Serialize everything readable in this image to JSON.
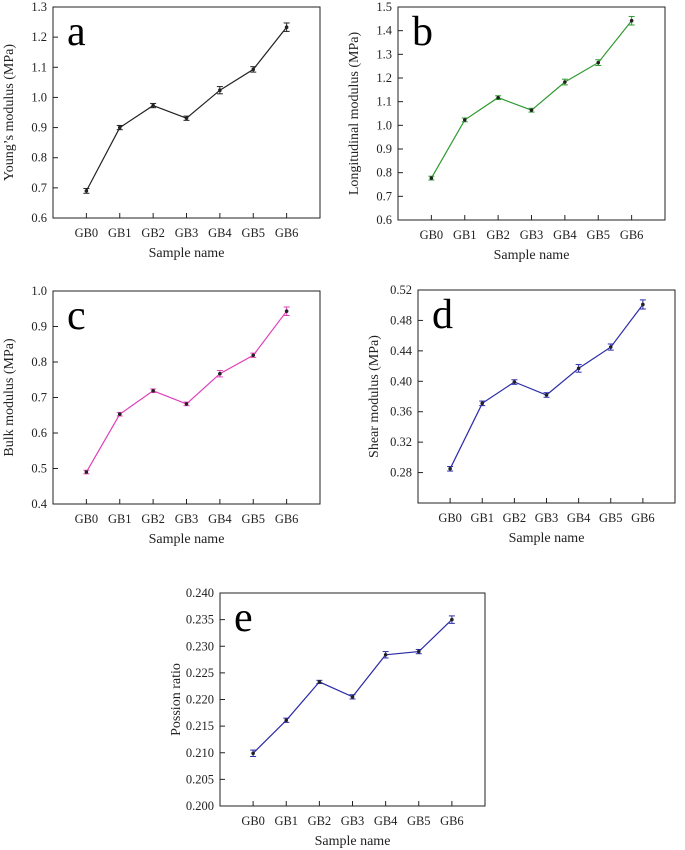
{
  "chart_data": [
    {
      "type": "line",
      "panel": "a",
      "color": "#222222",
      "categories": [
        "GB0",
        "GB1",
        "GB2",
        "GB3",
        "GB4",
        "GB5",
        "GB6"
      ],
      "values": [
        0.69,
        0.9,
        0.973,
        0.931,
        1.024,
        1.093,
        1.233
      ],
      "errors": [
        0.008,
        0.007,
        0.007,
        0.007,
        0.012,
        0.009,
        0.014
      ],
      "xlabel": "Sample name",
      "ylabel": "Young’s modulus (MPa)",
      "ylim": [
        0.6,
        1.3
      ],
      "yticks": [
        "0.6",
        "0.7",
        "0.8",
        "0.9",
        "1.0",
        "1.1",
        "1.2",
        "1.3"
      ]
    },
    {
      "type": "line",
      "panel": "b",
      "color": "#2e9a2e",
      "categories": [
        "GB0",
        "GB1",
        "GB2",
        "GB3",
        "GB4",
        "GB5",
        "GB6"
      ],
      "values": [
        0.777,
        1.023,
        1.117,
        1.064,
        1.183,
        1.265,
        1.442
      ],
      "errors": [
        0.008,
        0.008,
        0.008,
        0.008,
        0.012,
        0.012,
        0.018
      ],
      "xlabel": "Sample name",
      "ylabel": "Longitudinal modulus (MPa)",
      "ylim": [
        0.6,
        1.5
      ],
      "yticks": [
        "0.6",
        "0.7",
        "0.8",
        "0.9",
        "1.0",
        "1.1",
        "1.2",
        "1.3",
        "1.4",
        "1.5"
      ]
    },
    {
      "type": "line",
      "panel": "c",
      "color": "#e040b8",
      "categories": [
        "GB0",
        "GB1",
        "GB2",
        "GB3",
        "GB4",
        "GB5",
        "GB6"
      ],
      "values": [
        0.49,
        0.653,
        0.719,
        0.682,
        0.767,
        0.819,
        0.943
      ],
      "errors": [
        0.005,
        0.005,
        0.005,
        0.005,
        0.009,
        0.006,
        0.012
      ],
      "xlabel": "Sample name",
      "ylabel": "Bulk modulus (MPa)",
      "ylim": [
        0.4,
        1.0
      ],
      "yticks": [
        "0.4",
        "0.5",
        "0.6",
        "0.7",
        "0.8",
        "0.9",
        "1.0"
      ]
    },
    {
      "type": "line",
      "panel": "d",
      "color": "#2b2baa",
      "categories": [
        "GB0",
        "GB1",
        "GB2",
        "GB3",
        "GB4",
        "GB5",
        "GB6"
      ],
      "values": [
        0.285,
        0.371,
        0.399,
        0.382,
        0.417,
        0.445,
        0.501
      ],
      "errors": [
        0.003,
        0.003,
        0.003,
        0.003,
        0.005,
        0.004,
        0.006
      ],
      "xlabel": "Sample name",
      "ylabel": "Shear modulus (MPa)",
      "ylim": [
        0.24,
        0.52
      ],
      "yticks": [
        "0.28",
        "0.32",
        "0.36",
        "0.40",
        "0.44",
        "0.48",
        "0.52"
      ]
    },
    {
      "type": "line",
      "panel": "e",
      "color": "#2b2baa",
      "categories": [
        "GB0",
        "GB1",
        "GB2",
        "GB3",
        "GB4",
        "GB5",
        "GB6"
      ],
      "values": [
        0.2099,
        0.2161,
        0.2233,
        0.2205,
        0.2284,
        0.229,
        0.235
      ],
      "errors": [
        0.0006,
        0.0004,
        0.0003,
        0.0004,
        0.0006,
        0.0004,
        0.0007
      ],
      "xlabel": "Sample name",
      "ylabel": "Possion ratio",
      "ylim": [
        0.2,
        0.24
      ],
      "yticks": [
        "0.200",
        "0.205",
        "0.210",
        "0.215",
        "0.220",
        "0.225",
        "0.230",
        "0.235",
        "0.240"
      ]
    }
  ]
}
